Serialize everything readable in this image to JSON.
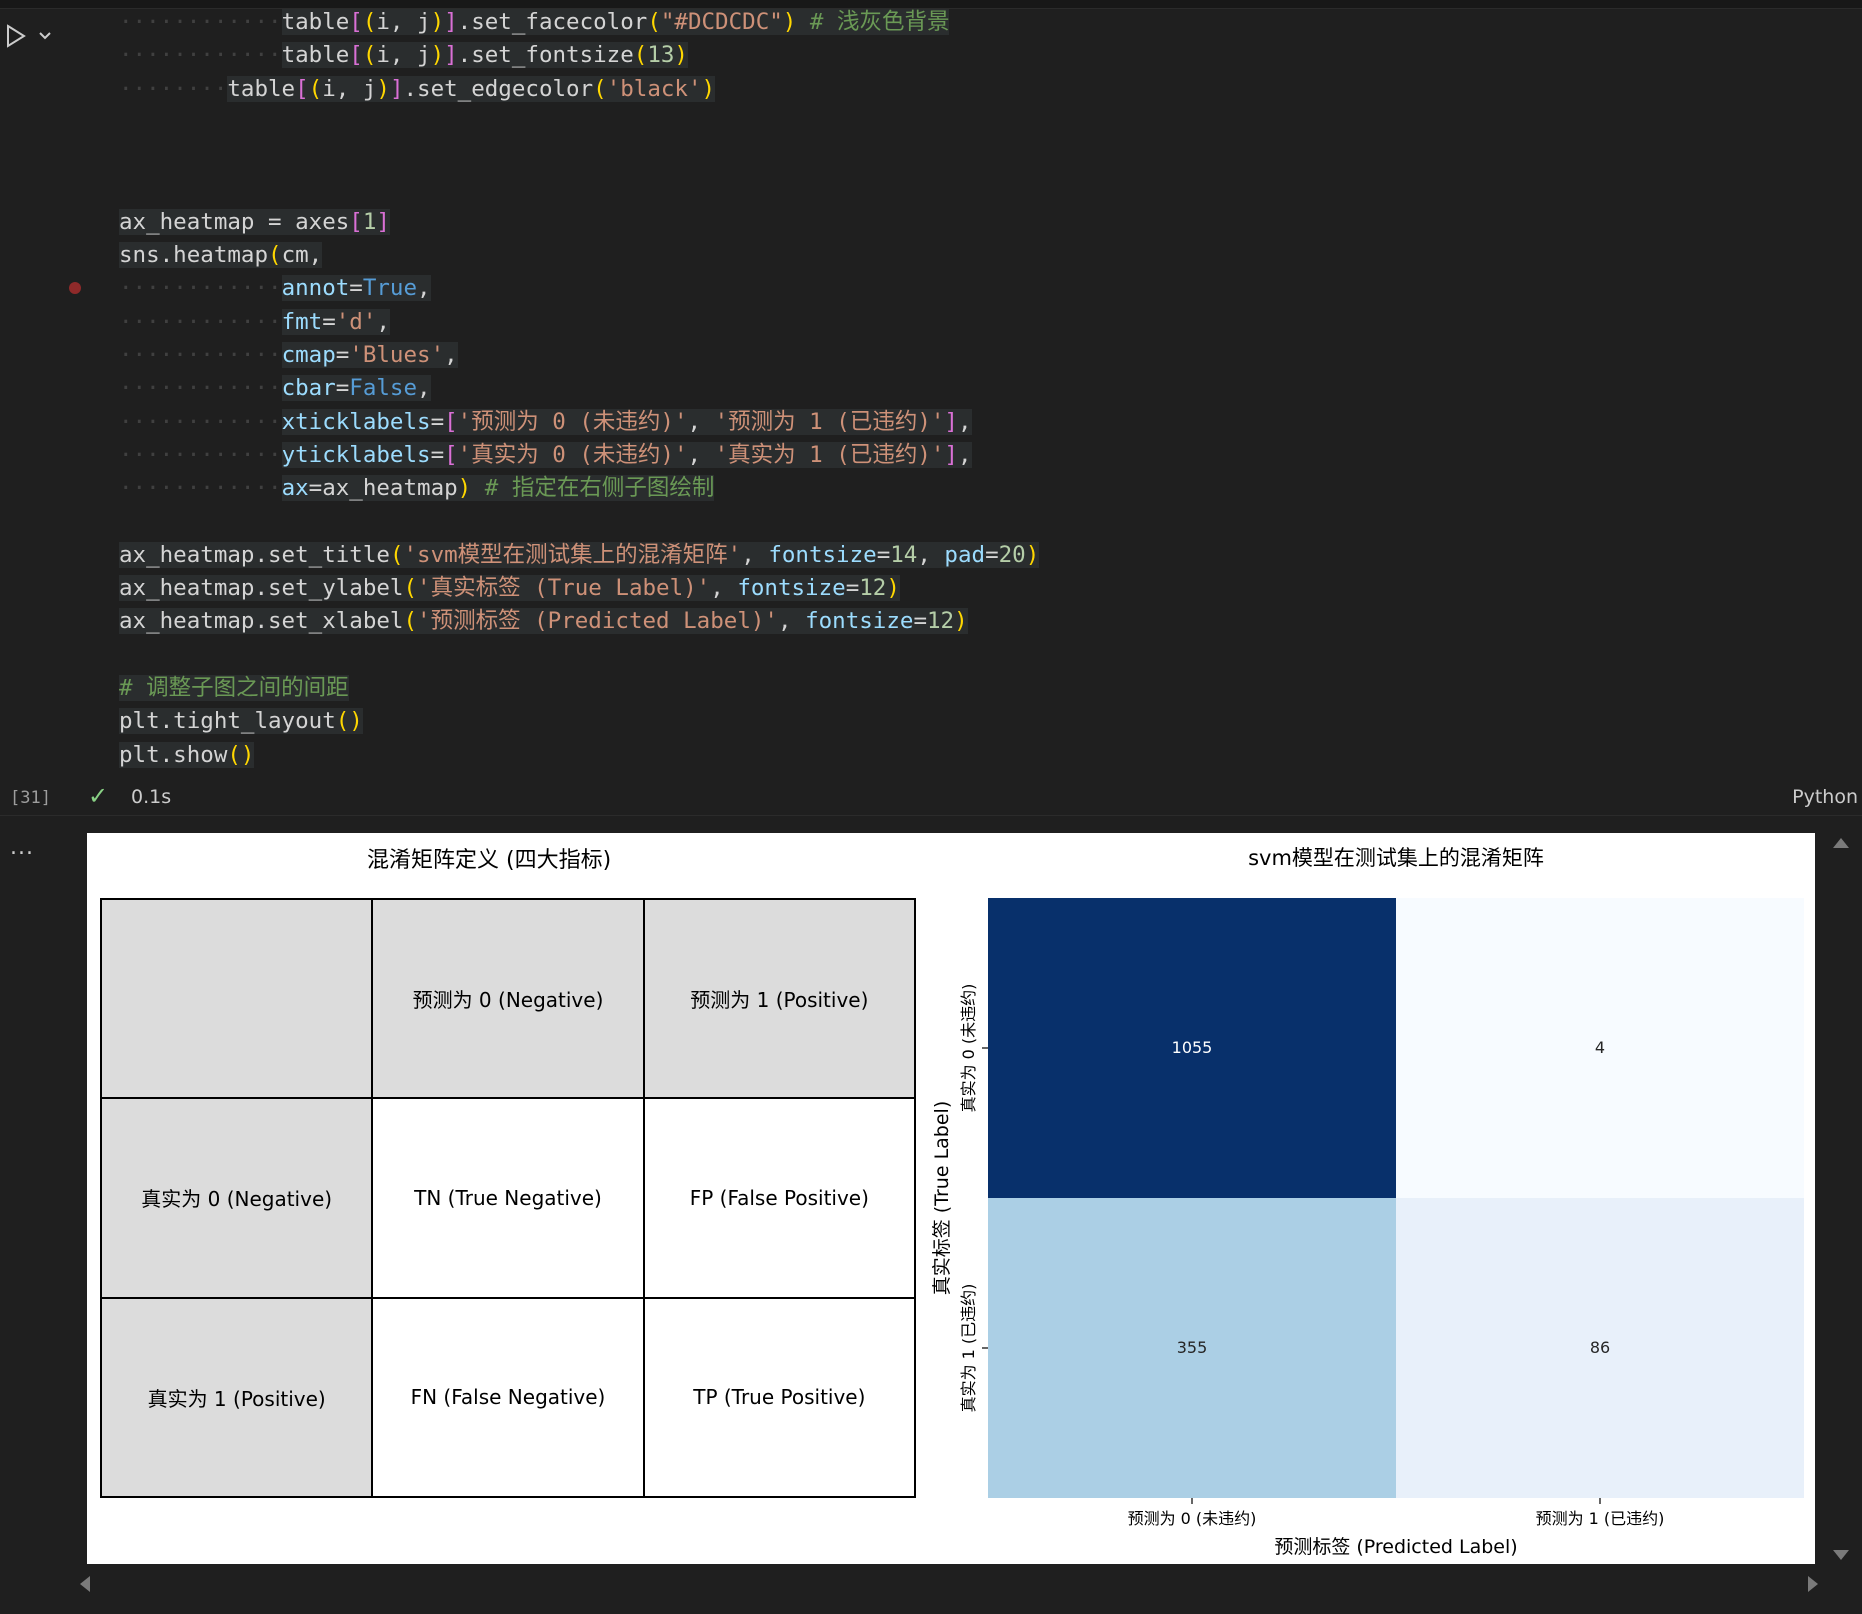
{
  "code_lines": [
    "            table[(i, j)].set_facecolor(\"#DCDCDC\") # 浅灰色背景",
    "            table[(i, j)].set_fontsize(13)",
    "        table[(i, j)].set_edgecolor('black')",
    "",
    "",
    "",
    "ax_heatmap = axes[1]",
    "sns.heatmap(cm,",
    "            annot=True,",
    "            fmt='d',",
    "            cmap='Blues',",
    "            cbar=False,",
    "            xticklabels=['预测为 0 (未违约)', '预测为 1 (已违约)'],",
    "            yticklabels=['真实为 0 (未违约)', '真实为 1 (已违约)'],",
    "            ax=ax_heatmap) # 指定在右侧子图绘制",
    "",
    "ax_heatmap.set_title('svm模型在测试集上的混淆矩阵', fontsize=14, pad=20)",
    "ax_heatmap.set_ylabel('真实标签 (True Label)', fontsize=12)",
    "ax_heatmap.set_xlabel('预测标签 (Predicted Label)', fontsize=12)",
    "",
    "# 调整子图之间的间距",
    "plt.tight_layout()",
    "plt.show()"
  ],
  "status": {
    "exec_count": "[31]",
    "exec_time": "0.1s",
    "language": "Python",
    "output_menu": "..."
  },
  "left_panel": {
    "title": "混淆矩阵定义 (四大指标)",
    "header_row": [
      "",
      "预测为 0 (Negative)",
      "预测为 1 (Positive)"
    ],
    "rows": [
      [
        "真实为 0 (Negative)",
        "TN (True Negative)",
        "FP (False Positive)"
      ],
      [
        "真实为 1 (Positive)",
        "FN (False Negative)",
        "TP (True Positive)"
      ]
    ]
  },
  "chart_data": {
    "type": "heatmap",
    "title": "svm模型在测试集上的混淆矩阵",
    "xlabel": "预测标签 (Predicted Label)",
    "ylabel": "真实标签 (True Label)",
    "x_categories": [
      "预测为 0 (未违约)",
      "预测为 1 (已违约)"
    ],
    "y_categories": [
      "真实为 0 (未违约)",
      "真实为 1 (已违约)"
    ],
    "values": [
      [
        1055,
        4
      ],
      [
        355,
        86
      ]
    ],
    "colormap": "Blues",
    "colorbar": false,
    "cell_colors": [
      [
        "#08306b",
        "#f7fbff"
      ],
      [
        "#abcfe5",
        "#e8f0fa"
      ]
    ],
    "text_colors": [
      [
        "#ffffff",
        "#262626"
      ],
      [
        "#262626",
        "#262626"
      ]
    ]
  }
}
